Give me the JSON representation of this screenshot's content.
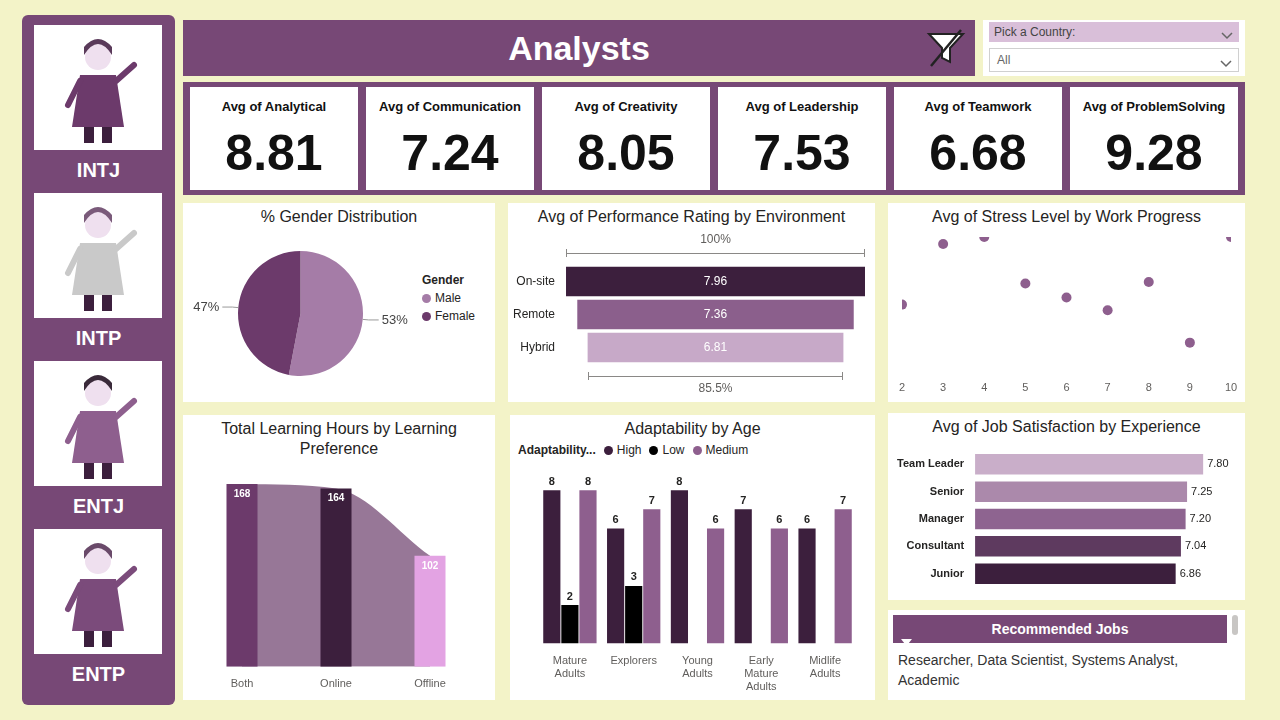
{
  "header": {
    "title": "Analysts",
    "filter_label": "Pick a Country:",
    "filter_value": "All"
  },
  "sidebar": [
    "INTJ",
    "INTP",
    "ENTJ",
    "ENTP"
  ],
  "kpis": [
    {
      "label": "Avg of Analytical",
      "value": 8.81
    },
    {
      "label": "Avg of Communication",
      "value": 7.24
    },
    {
      "label": "Avg of Creativity",
      "value": 8.05
    },
    {
      "label": "Avg of Leadership",
      "value": 7.53
    },
    {
      "label": "Avg of Teamwork",
      "value": 6.68
    },
    {
      "label": "Avg of ProblemSolving",
      "value": 9.28
    }
  ],
  "chart_data": [
    {
      "type": "pie",
      "title": "% Gender Distribution",
      "categories": [
        "Male",
        "Female"
      ],
      "values": [
        53,
        47
      ],
      "value_labels": [
        "53%",
        "47%"
      ],
      "colors": [
        "#a57ca7",
        "#6c3a6b"
      ],
      "legend": "right",
      "legend_title": "Gender",
      "data_labels": true
    },
    {
      "type": "funnel",
      "title": "Avg of Performance Rating by Environment",
      "categories": [
        "On-site",
        "Remote",
        "Hybrid"
      ],
      "values": [
        7.96,
        7.36,
        6.81
      ],
      "colors": [
        "#3c1f3d",
        "#8b5f8c",
        "#c7a9c8"
      ],
      "annotations": [
        "100%",
        "85.5%"
      ],
      "tick_labels": "y",
      "data_labels": true
    },
    {
      "type": "scatter",
      "title": "Avg of Stress Level by Work Progress",
      "x": [
        2,
        3,
        4,
        5,
        6,
        7,
        8,
        9,
        10
      ],
      "values": [
        5.04,
        5.9,
        6.0,
        5.34,
        5.14,
        4.96,
        5.36,
        4.5,
        6.0
      ],
      "color": "#8e5f8e",
      "xlim": [
        2,
        10
      ],
      "xticks": [
        2,
        3,
        4,
        5,
        6,
        7,
        8,
        9,
        10
      ],
      "ylim": [
        4.1,
        6.0
      ],
      "tick_labels": "x",
      "grid": false
    },
    {
      "type": "ribbon",
      "title": "Total Learning Hours by Learning Preference",
      "categories": [
        "Both",
        "Online",
        "Offline"
      ],
      "values": [
        168,
        164,
        102
      ],
      "colors": [
        "#6c3a6b",
        "#3c1f3d",
        "#e3a3e3"
      ],
      "ylim": [
        0,
        180
      ],
      "tick_labels": "x",
      "grid": false,
      "data_labels": true
    },
    {
      "type": "bar",
      "title": "Adaptability by Age",
      "categories": [
        "Mature Adults",
        "Explorers",
        "Young Adults",
        "Early Mature Adults",
        "Midlife Adults"
      ],
      "series": [
        {
          "name": "High",
          "color": "#3c1f3d",
          "values": [
            8,
            6,
            8,
            7,
            6
          ]
        },
        {
          "name": "Low",
          "color": "#000000",
          "values": [
            2,
            3,
            null,
            null,
            null
          ]
        },
        {
          "name": "Medium",
          "color": "#8e5f8e",
          "values": [
            8,
            7,
            6,
            6,
            7
          ]
        }
      ],
      "legend": "top-left",
      "legend_title": "Adaptability...",
      "ylim": [
        0,
        9
      ],
      "tick_labels": "x",
      "grid": false,
      "data_labels": true
    },
    {
      "type": "bar",
      "orientation": "horizontal",
      "title": "Avg of Job Satisfaction by Experience",
      "categories": [
        "Team Leader",
        "Senior",
        "Manager",
        "Consultant",
        "Junior"
      ],
      "values": [
        7.8,
        7.25,
        7.2,
        7.04,
        6.86
      ],
      "value_labels": [
        "7.80",
        "7.25",
        "7.20",
        "7.04",
        "6.86"
      ],
      "colors": [
        "#c9aec9",
        "#ab89ab",
        "#8e6490",
        "#5e3a5f",
        "#3c1f3d"
      ],
      "xlim": [
        0,
        8
      ],
      "tick_labels": "y",
      "grid": false,
      "data_labels": true
    }
  ],
  "recommended_jobs": {
    "title": "Recommended Jobs",
    "text": "Researcher, Data Scientist, Systems Analyst, Academic"
  }
}
